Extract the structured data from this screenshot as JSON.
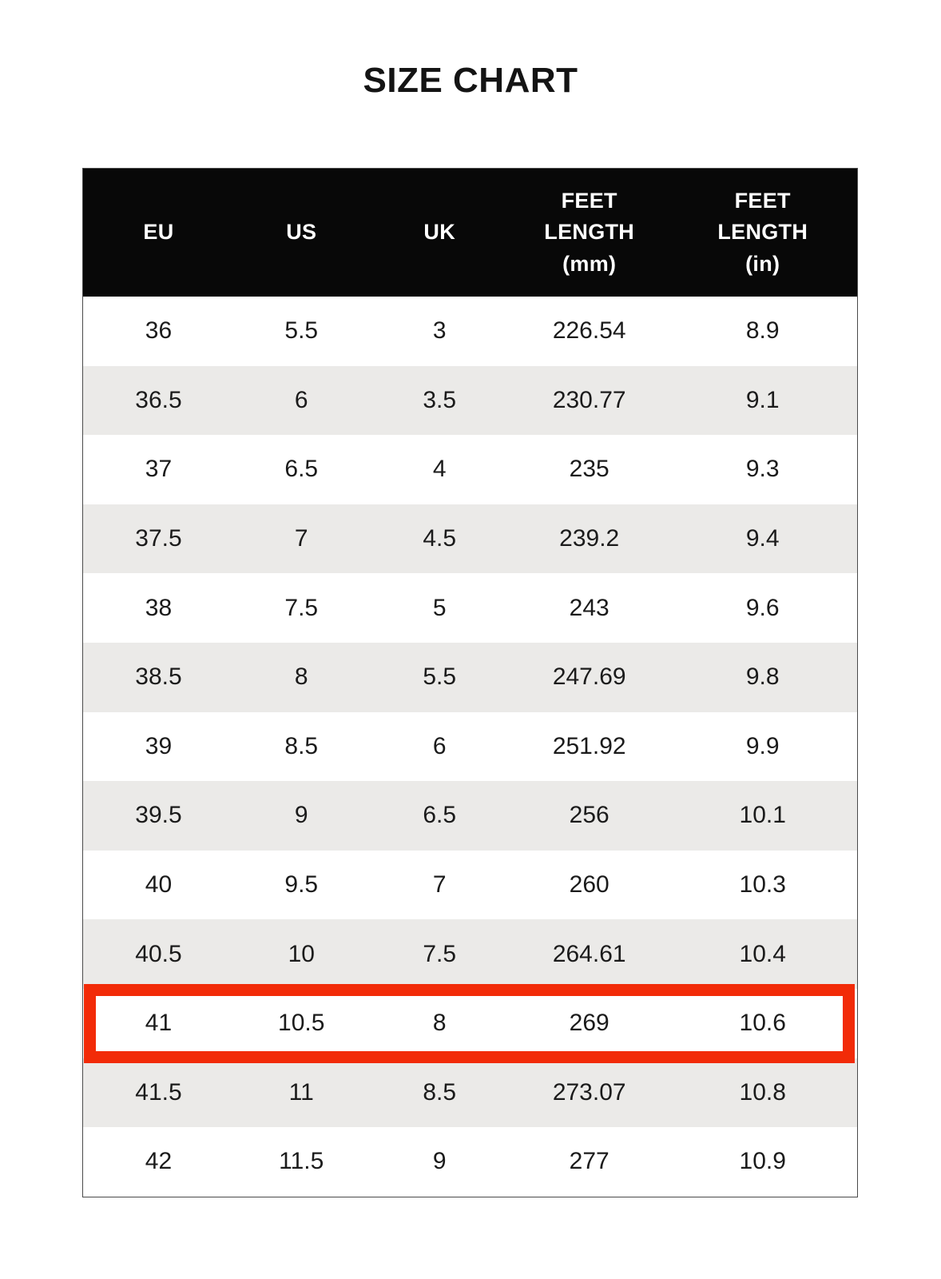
{
  "page": {
    "title": "SIZE CHART"
  },
  "chart_data": {
    "type": "table",
    "title": "SIZE CHART",
    "columns": [
      "EU",
      "US",
      "UK",
      "FEET LENGTH (mm)",
      "FEET LENGTH (in)"
    ],
    "rows": [
      [
        "36",
        "5.5",
        "3",
        "226.54",
        "8.9"
      ],
      [
        "36.5",
        "6",
        "3.5",
        "230.77",
        "9.1"
      ],
      [
        "37",
        "6.5",
        "4",
        "235",
        "9.3"
      ],
      [
        "37.5",
        "7",
        "4.5",
        "239.2",
        "9.4"
      ],
      [
        "38",
        "7.5",
        "5",
        "243",
        "9.6"
      ],
      [
        "38.5",
        "8",
        "5.5",
        "247.69",
        "9.8"
      ],
      [
        "39",
        "8.5",
        "6",
        "251.92",
        "9.9"
      ],
      [
        "39.5",
        "9",
        "6.5",
        "256",
        "10.1"
      ],
      [
        "40",
        "9.5",
        "7",
        "260",
        "10.3"
      ],
      [
        "40.5",
        "10",
        "7.5",
        "264.61",
        "10.4"
      ],
      [
        "41",
        "10.5",
        "8",
        "269",
        "10.6"
      ],
      [
        "41.5",
        "11",
        "8.5",
        "273.07",
        "10.8"
      ],
      [
        "42",
        "11.5",
        "9",
        "277",
        "10.9"
      ]
    ],
    "highlighted_row": {
      "index": 10,
      "values": [
        "41",
        "10.5",
        "8",
        "269",
        "10.6"
      ]
    },
    "layout": {
      "header_style": "black background, white bold text",
      "row_striping": "odd rows white, even rows light gray",
      "grid": "no inner gridlines, thin outer border"
    }
  },
  "table": {
    "header_lines": [
      "EU",
      "US",
      "UK",
      "FEET\nLENGTH\n(mm)",
      "FEET\nLENGTH\n(in)"
    ],
    "highlighted_row_index": 10
  },
  "colors": {
    "header_bg": "#080808",
    "header_text": "#ffffff",
    "row_bg": "#ffffff",
    "row_alt_bg": "#ebeae8",
    "text": "#1b1b1b",
    "highlight_border": "#f22b08",
    "table_border": "#4a4a4a"
  }
}
